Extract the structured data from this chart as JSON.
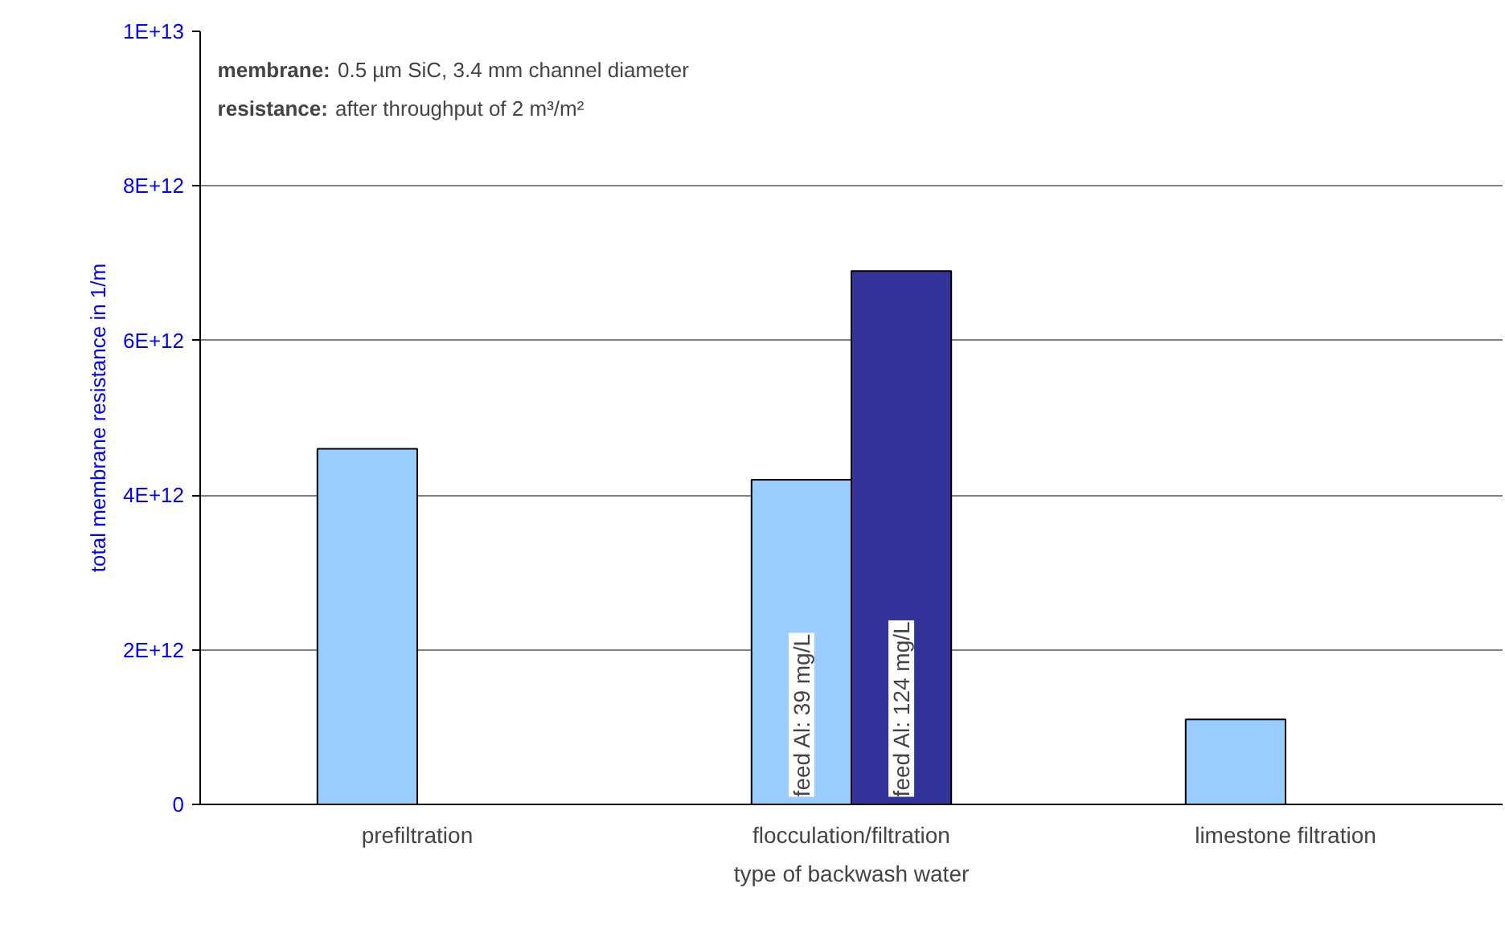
{
  "chart_data": {
    "type": "bar",
    "xlabel": "type of backwash water",
    "ylabel": "total membrane resistance in 1/m",
    "categories": [
      "prefiltration",
      "flocculation/filtration",
      "limestone filtration"
    ],
    "series": [
      {
        "name": "feed Al: 39 mg/L",
        "color": "#99ccff",
        "values": [
          4600000000000.0,
          4200000000000.0,
          1100000000000.0
        ]
      },
      {
        "name": "feed Al: 124 mg/L",
        "color": "#333399",
        "values": [
          null,
          6900000000000.0,
          null
        ]
      }
    ],
    "ylim": [
      0,
      10000000000000.0
    ],
    "yticks": [
      0,
      {
        "value": 2000000000000.0,
        "label": "2E+12"
      },
      {
        "value": 4000000000000.0,
        "label": "4E+12"
      },
      {
        "value": 6000000000000.0,
        "label": "6E+12"
      },
      {
        "value": 8000000000000.0,
        "label": "8E+12"
      },
      {
        "value": 10000000000000.0,
        "label": "1E+13"
      }
    ],
    "grid": "y",
    "legend": false,
    "annotations": [
      "membrane: 0.5 µm SiC, 3.4 mm channel diameter",
      "resistance: after throughput of 2 m³/m²"
    ]
  }
}
